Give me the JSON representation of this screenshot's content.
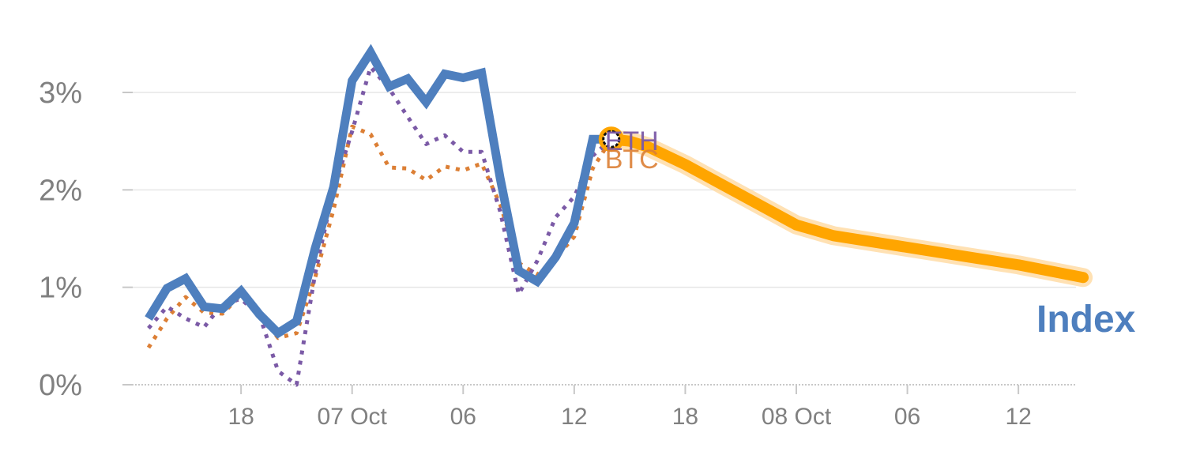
{
  "chart_data": {
    "type": "line",
    "title": "",
    "xlabel": "",
    "ylabel": "",
    "y_unit": "%",
    "ylim": [
      0,
      3.5
    ],
    "y_ticks": [
      {
        "value": 0,
        "label": "0%"
      },
      {
        "value": 1,
        "label": "1%"
      },
      {
        "value": 2,
        "label": "2%"
      },
      {
        "value": 3,
        "label": "3%"
      }
    ],
    "x_ticks": [
      {
        "hour": 18,
        "label": "18"
      },
      {
        "hour": 24,
        "label": "07 Oct"
      },
      {
        "hour": 30,
        "label": "06"
      },
      {
        "hour": 36,
        "label": "12"
      },
      {
        "hour": 42,
        "label": "18"
      },
      {
        "hour": 48,
        "label": "08 Oct"
      },
      {
        "hour": 54,
        "label": "06"
      },
      {
        "hour": 60,
        "label": "12"
      }
    ],
    "grid": true,
    "colors": {
      "index": "#4e7fbe",
      "eth": "#7b5aa6",
      "btc": "#dc7f35",
      "forecast": "#ffa500",
      "forecast_glow": "#ffd9a0",
      "grid": "#e6e6e6",
      "axis": "#c8c8c8"
    },
    "series": [
      {
        "key": "index",
        "style": "solid",
        "x": [
          13,
          14,
          15,
          16,
          17,
          18,
          19,
          20,
          21,
          22,
          23,
          24,
          25,
          26,
          27,
          28,
          29,
          30,
          31,
          32,
          33,
          34,
          35,
          36,
          37,
          38
        ],
        "values": [
          0.68,
          0.99,
          1.09,
          0.8,
          0.78,
          0.96,
          0.72,
          0.53,
          0.65,
          1.4,
          2.03,
          3.12,
          3.41,
          3.06,
          3.14,
          2.9,
          3.19,
          3.15,
          3.2,
          2.12,
          1.17,
          1.06,
          1.31,
          1.66,
          2.52,
          2.52
        ]
      },
      {
        "key": "eth",
        "name": "ETH",
        "style": "dotted",
        "x": [
          13,
          14,
          15,
          16,
          17,
          18,
          19,
          20,
          21,
          22,
          23,
          24,
          25,
          26,
          27,
          28,
          29,
          30,
          31,
          32,
          33,
          34,
          35,
          36,
          37,
          38
        ],
        "values": [
          0.58,
          0.8,
          0.68,
          0.59,
          0.83,
          0.88,
          0.71,
          0.14,
          0.0,
          1.14,
          2.01,
          2.6,
          3.26,
          3.04,
          2.75,
          2.47,
          2.56,
          2.39,
          2.39,
          1.78,
          0.93,
          1.27,
          1.72,
          1.93,
          2.35,
          2.52
        ]
      },
      {
        "key": "btc",
        "name": "BTC",
        "style": "dotted",
        "x": [
          13,
          14,
          15,
          16,
          17,
          18,
          19,
          20,
          21,
          22,
          23,
          24,
          25,
          26,
          27,
          28,
          29,
          30,
          31,
          32,
          33,
          34,
          35,
          36,
          37,
          38
        ],
        "values": [
          0.38,
          0.68,
          0.9,
          0.74,
          0.73,
          0.92,
          0.73,
          0.48,
          0.53,
          1.1,
          1.8,
          2.65,
          2.57,
          2.23,
          2.22,
          2.1,
          2.24,
          2.2,
          2.27,
          1.85,
          1.25,
          1.13,
          1.3,
          1.52,
          2.22,
          2.52
        ]
      },
      {
        "key": "forecast",
        "style": "highlight",
        "x": [
          38,
          39,
          40,
          42,
          45,
          48,
          50,
          55,
          60,
          63.5
        ],
        "values": [
          2.52,
          2.5,
          2.44,
          2.26,
          1.95,
          1.64,
          1.53,
          1.38,
          1.23,
          1.1
        ]
      }
    ],
    "marker": {
      "x": 38,
      "value": 2.52
    },
    "annotations": {
      "eth": "ETH",
      "btc": "BTC",
      "index": "Index"
    }
  }
}
